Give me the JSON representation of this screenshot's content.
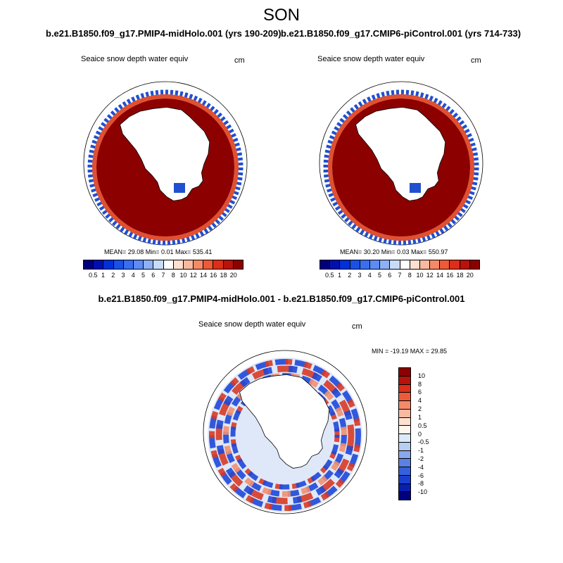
{
  "season": "SON",
  "left_panel": {
    "case": "b.e21.B1850.f09_g17.PMIP4-midHolo.001 (yrs 190-209)",
    "field": "Seaice snow depth water equiv",
    "units": "cm",
    "stats": "MEAN=  29.08  Min=   0.01  Max= 535.41"
  },
  "right_panel": {
    "case": "b.e21.B1850.f09_g17.CMIP6-piControl.001 (yrs 714-733)",
    "field": "Seaice snow depth water equiv",
    "units": "cm",
    "stats": "MEAN=  30.20  Min=   0.03  Max= 550.97"
  },
  "diff_panel": {
    "title": "b.e21.B1850.f09_g17.PMIP4-midHolo.001 - b.e21.B1850.f09_g17.CMIP6-piControl.001",
    "field": "Seaice snow depth water equiv",
    "units": "cm",
    "stats": "MIN = -19.19 MAX =  29.85"
  },
  "abs_colorbar": {
    "labels": [
      "0.5",
      "1",
      "2",
      "3",
      "4",
      "5",
      "6",
      "7",
      "8",
      "10",
      "12",
      "14",
      "16",
      "18",
      "20"
    ],
    "colors": [
      "#00007f",
      "#0010b0",
      "#0030d8",
      "#1a50e8",
      "#3a6ef0",
      "#5d8cf5",
      "#8fb0f5",
      "#c8dcf8",
      "#ffffff",
      "#fde0d0",
      "#f9b9a0",
      "#f58a68",
      "#ee5a38",
      "#dd2e1a",
      "#b8120a",
      "#8c0000"
    ]
  },
  "diff_colorbar": {
    "labels": [
      "10",
      "8",
      "6",
      "4",
      "2",
      "1",
      "0.5",
      "0",
      "-0.5",
      "-1",
      "-2",
      "-4",
      "-6",
      "-8",
      "-10"
    ],
    "colors": [
      "#8c0000",
      "#b8120a",
      "#dd2e1a",
      "#ee5a38",
      "#f58a68",
      "#f9b9a0",
      "#fde0d0",
      "#fff5ec",
      "#dde8f8",
      "#b8cdf2",
      "#8aa8ee",
      "#5a82e6",
      "#3560de",
      "#1a3fd0",
      "#0820b0",
      "#00007f"
    ]
  },
  "map_colors": {
    "high_snow": "#8c0000",
    "mid_snow": "#e05030",
    "low_snow": "#2050d0",
    "diff_pos": "#d83a24",
    "diff_neg": "#1e48d8",
    "land": "#ffffff"
  }
}
